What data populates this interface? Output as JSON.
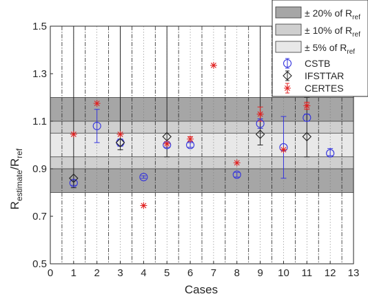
{
  "chart_data": {
    "type": "scatter",
    "xlabel": "Cases",
    "ylabel_parts": {
      "r1": "R",
      "sub1": "estimate",
      "slash": "/R",
      "sub2": "ref"
    },
    "xlim": [
      0,
      13
    ],
    "ylim": [
      0.5,
      1.5
    ],
    "xticks": [
      0,
      1,
      2,
      3,
      4,
      5,
      6,
      7,
      8,
      9,
      10,
      11,
      12,
      13
    ],
    "yticks": [
      0.5,
      0.7,
      0.9,
      1.1,
      1.3,
      1.5
    ],
    "bands": [
      {
        "name_prefix": "± 20% of R",
        "name_sub": "ref",
        "range": [
          0.8,
          1.2
        ],
        "color": "#a6a6a6"
      },
      {
        "name_prefix": "± 10% of R",
        "name_sub": "ref",
        "range": [
          0.9,
          1.1
        ],
        "color": "#cfcfcf"
      },
      {
        "name_prefix": "± 5% of R",
        "name_sub": "ref",
        "range": [
          0.95,
          1.05
        ],
        "color": "#e8e8e8"
      }
    ],
    "case_dividers": [
      0.5,
      1.5,
      2.5,
      3.5,
      4.5,
      5.5,
      6.5,
      7.5,
      8.5,
      9.5,
      10.5,
      11.5,
      12.5
    ],
    "series": [
      {
        "name": "CSTB",
        "marker": "circle",
        "color": "#3333dd",
        "x": [
          1,
          2,
          3,
          4,
          5,
          6,
          8,
          9,
          10,
          11,
          12
        ],
        "values": [
          0.84,
          1.08,
          1.01,
          0.865,
          1.0,
          1.0,
          0.875,
          1.09,
          0.99,
          1.115,
          0.965
        ],
        "lower": [
          0.83,
          1.01,
          0.995,
          0.86,
          0.99,
          0.99,
          0.865,
          1.07,
          0.86,
          1.1,
          0.955
        ],
        "upper": [
          0.85,
          1.15,
          1.025,
          0.87,
          1.01,
          1.01,
          0.885,
          1.11,
          1.12,
          1.13,
          0.985
        ]
      },
      {
        "name": "IFSTTAR",
        "marker": "diamond",
        "color": "#222222",
        "x": [
          1,
          3,
          5,
          9,
          11
        ],
        "values": [
          0.86,
          1.01,
          1.035,
          1.045,
          1.035
        ],
        "lower": [
          0.82,
          0.98,
          0.95,
          1.0,
          0.95
        ],
        "upper": [
          1.5,
          1.5,
          1.5,
          1.5,
          1.2
        ]
      },
      {
        "name": "CERTES",
        "marker": "star",
        "color": "#e02020",
        "x": [
          1,
          2,
          3,
          4,
          5,
          6,
          7,
          8,
          9,
          10,
          11
        ],
        "values": [
          1.045,
          1.175,
          1.045,
          0.745,
          1.005,
          1.025,
          1.335,
          0.925,
          1.13,
          0.98,
          1.165
        ],
        "lower": [
          1.045,
          1.175,
          1.045,
          0.745,
          1.005,
          1.015,
          1.335,
          0.925,
          1.1,
          0.98,
          1.15
        ],
        "upper": [
          1.045,
          1.175,
          1.045,
          0.745,
          1.005,
          1.035,
          1.335,
          0.925,
          1.16,
          0.98,
          1.18
        ]
      }
    ]
  }
}
